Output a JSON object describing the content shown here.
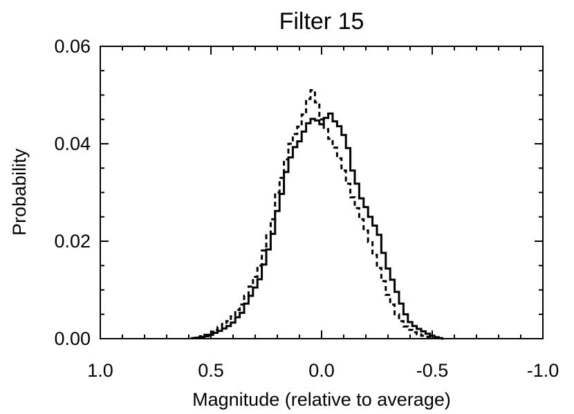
{
  "chart_data": {
    "type": "line",
    "title": "Filter 15",
    "xlabel": "Magnitude (relative to average)",
    "ylabel": "Probability",
    "xlim": [
      1.0,
      -1.0
    ],
    "ylim": [
      0.0,
      0.06
    ],
    "x_ticks": [
      1.0,
      0.5,
      0.0,
      -0.5,
      -1.0
    ],
    "x_tick_labels": [
      "1.0",
      "0.5",
      "0.0",
      "-0.5",
      "-1.0"
    ],
    "y_ticks": [
      0.0,
      0.02,
      0.04,
      0.06
    ],
    "y_tick_labels": [
      "0.00",
      "0.02",
      "0.04",
      "0.06"
    ],
    "grid": false,
    "x_minor_step": 0.1,
    "y_minor_step": 0.005,
    "series": [
      {
        "name": "solid histogram",
        "style": "solid",
        "x": [
          0.58,
          0.56,
          0.54,
          0.52,
          0.5,
          0.48,
          0.46,
          0.44,
          0.42,
          0.4,
          0.38,
          0.36,
          0.34,
          0.32,
          0.3,
          0.28,
          0.26,
          0.24,
          0.22,
          0.2,
          0.18,
          0.16,
          0.14,
          0.12,
          0.1,
          0.08,
          0.06,
          0.04,
          0.02,
          0.0,
          -0.02,
          -0.04,
          -0.06,
          -0.08,
          -0.1,
          -0.12,
          -0.14,
          -0.16,
          -0.18,
          -0.2,
          -0.22,
          -0.24,
          -0.26,
          -0.28,
          -0.3,
          -0.32,
          -0.34,
          -0.36,
          -0.38,
          -0.4,
          -0.42,
          -0.44,
          -0.46,
          -0.48,
          -0.5,
          -0.52,
          -0.54
        ],
        "values": [
          0.0001,
          0.0002,
          0.0003,
          0.0005,
          0.0008,
          0.0012,
          0.0016,
          0.0021,
          0.0026,
          0.0033,
          0.0044,
          0.0053,
          0.0072,
          0.0088,
          0.0105,
          0.0122,
          0.0152,
          0.0183,
          0.0215,
          0.0262,
          0.0297,
          0.0342,
          0.0372,
          0.0393,
          0.0405,
          0.0425,
          0.0442,
          0.0451,
          0.0448,
          0.044,
          0.0453,
          0.0462,
          0.0446,
          0.0436,
          0.0418,
          0.0391,
          0.0345,
          0.0318,
          0.0288,
          0.027,
          0.025,
          0.0232,
          0.0213,
          0.0176,
          0.0144,
          0.0121,
          0.0096,
          0.0072,
          0.005,
          0.0034,
          0.0026,
          0.002,
          0.0015,
          0.001,
          0.0006,
          0.0003,
          0.0001
        ]
      },
      {
        "name": "dashed histogram",
        "style": "dashed",
        "x": [
          0.58,
          0.56,
          0.54,
          0.52,
          0.5,
          0.48,
          0.46,
          0.44,
          0.42,
          0.4,
          0.38,
          0.36,
          0.34,
          0.32,
          0.3,
          0.28,
          0.26,
          0.24,
          0.22,
          0.2,
          0.18,
          0.16,
          0.14,
          0.12,
          0.1,
          0.08,
          0.06,
          0.04,
          0.02,
          0.0,
          -0.02,
          -0.04,
          -0.06,
          -0.08,
          -0.1,
          -0.12,
          -0.14,
          -0.16,
          -0.18,
          -0.2,
          -0.22,
          -0.24,
          -0.26,
          -0.28,
          -0.3,
          -0.32,
          -0.34,
          -0.36,
          -0.38,
          -0.4,
          -0.42,
          -0.44,
          -0.46,
          -0.48,
          -0.5,
          -0.52,
          -0.54
        ],
        "values": [
          0.0001,
          0.0003,
          0.0005,
          0.0008,
          0.0013,
          0.0018,
          0.0024,
          0.003,
          0.0036,
          0.0046,
          0.0059,
          0.007,
          0.0088,
          0.0107,
          0.0127,
          0.015,
          0.0181,
          0.0212,
          0.0245,
          0.03,
          0.033,
          0.0368,
          0.04,
          0.042,
          0.0435,
          0.046,
          0.0492,
          0.051,
          0.0485,
          0.045,
          0.043,
          0.041,
          0.0392,
          0.037,
          0.0345,
          0.0318,
          0.029,
          0.0268,
          0.0245,
          0.0222,
          0.0198,
          0.0172,
          0.0145,
          0.0118,
          0.009,
          0.007,
          0.005,
          0.0036,
          0.0025,
          0.0018,
          0.0013,
          0.0009,
          0.0006,
          0.0004,
          0.0002,
          0.0001,
          0.0
        ]
      }
    ]
  }
}
